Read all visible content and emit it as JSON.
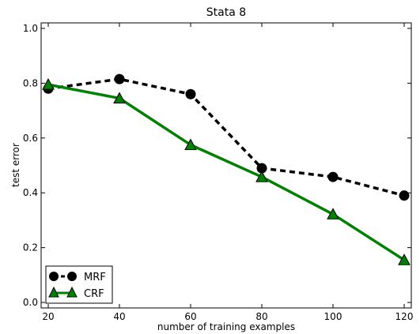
{
  "chart_data": {
    "type": "line",
    "title": "Stata 8",
    "xlabel": "number of training examples",
    "ylabel": "test error",
    "x": [
      20,
      40,
      60,
      80,
      100,
      120
    ],
    "xticks": [
      20,
      40,
      60,
      80,
      100,
      120
    ],
    "xlim": [
      18,
      122
    ],
    "yticks": [
      "0.0",
      "0.2",
      "0.4",
      "0.6",
      "0.8",
      "1.0"
    ],
    "ylim": [
      -0.02,
      1.02
    ],
    "grid": false,
    "legend_position": "lower-left",
    "series": [
      {
        "name": "MRF",
        "values": [
          0.78,
          0.815,
          0.76,
          0.49,
          0.458,
          0.39
        ],
        "color": "#000000",
        "line_style": "dashed",
        "marker": "circle"
      },
      {
        "name": "CRF",
        "values": [
          0.795,
          0.745,
          0.575,
          0.458,
          0.322,
          0.155
        ],
        "color": "#008000",
        "line_style": "solid",
        "marker": "triangle"
      }
    ]
  }
}
